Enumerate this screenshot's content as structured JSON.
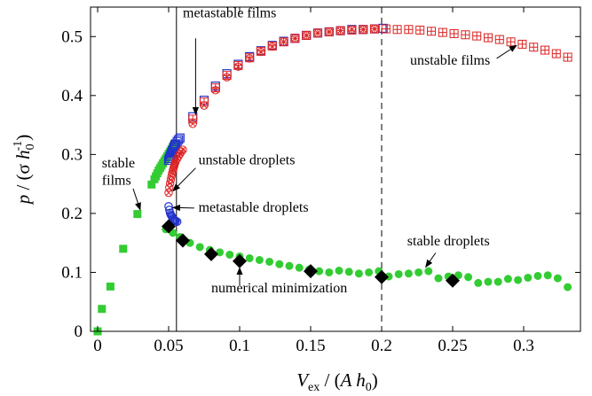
{
  "chart_data": {
    "type": "scatter",
    "title": "",
    "xlabel": {
      "main": "V",
      "sub": "ex",
      "rest_open": " / (",
      "italic": "A h",
      "sub2": "0",
      "rest_close": ")"
    },
    "ylabel": {
      "main": "p",
      "rest_open": " / (σ ",
      "italic": "h",
      "sub": "0",
      "sup": "-1",
      "rest_close": ")"
    },
    "xlim": [
      -0.005,
      0.34
    ],
    "ylim": [
      0,
      0.55
    ],
    "x_ticks": [
      0,
      0.05,
      0.1,
      0.15,
      0.2,
      0.25,
      0.3
    ],
    "x_tick_labels": [
      "0",
      "0.05",
      "0.1",
      "0.15",
      "0.2",
      "0.25",
      "0.3"
    ],
    "y_ticks": [
      0,
      0.1,
      0.2,
      0.3,
      0.4,
      0.5
    ],
    "y_tick_labels": [
      "0",
      "0.1",
      "0.2",
      "0.3",
      "0.4",
      "0.5"
    ],
    "grid": false,
    "vlines": [
      {
        "x": 0.0555,
        "style": "solid"
      },
      {
        "x": 0.2,
        "style": "dashed"
      }
    ],
    "series": [
      {
        "marker": "square-filled",
        "color": "#33cc33",
        "x": [
          0,
          0.003,
          0.009,
          0.018,
          0.028,
          0.038,
          0.04,
          0.041,
          0.042,
          0.043,
          0.044,
          0.045,
          0.046,
          0.047,
          0.048,
          0.049,
          0.05,
          0.051,
          0.052,
          0.053,
          0.054
        ],
        "y": [
          0,
          0.038,
          0.076,
          0.14,
          0.199,
          0.249,
          0.258,
          0.263,
          0.268,
          0.273,
          0.277,
          0.281,
          0.285,
          0.289,
          0.293,
          0.297,
          0.301,
          0.305,
          0.309,
          0.313,
          0.318
        ]
      },
      {
        "marker": "circle-filled",
        "color": "#33cc33",
        "x": [
          0.048,
          0.053,
          0.058,
          0.065,
          0.072,
          0.079,
          0.086,
          0.093,
          0.1,
          0.107,
          0.114,
          0.121,
          0.128,
          0.135,
          0.142,
          0.149,
          0.156,
          0.163,
          0.17,
          0.177,
          0.184,
          0.191,
          0.198,
          0.205,
          0.212,
          0.219,
          0.226,
          0.233,
          0.24,
          0.247,
          0.254,
          0.261,
          0.268,
          0.275,
          0.282,
          0.289,
          0.296,
          0.303,
          0.31,
          0.317,
          0.324,
          0.331
        ],
        "y": [
          0.173,
          0.167,
          0.16,
          0.15,
          0.143,
          0.138,
          0.134,
          0.13,
          0.127,
          0.124,
          0.121,
          0.118,
          0.114,
          0.111,
          0.108,
          0.105,
          0.102,
          0.1,
          0.103,
          0.101,
          0.098,
          0.1,
          0.102,
          0.093,
          0.097,
          0.098,
          0.1,
          0.102,
          0.09,
          0.093,
          0.095,
          0.092,
          0.082,
          0.084,
          0.084,
          0.089,
          0.087,
          0.091,
          0.094,
          0.095,
          0.09,
          0.075
        ]
      },
      {
        "marker": "square-open",
        "color": "#2233cc",
        "x": [
          0.05,
          0.0505,
          0.051,
          0.0515,
          0.052,
          0.0525,
          0.053,
          0.0535,
          0.054,
          0.0545,
          0.055,
          0.056,
          0.057,
          0.058,
          0.067,
          0.075,
          0.083,
          0.091,
          0.099,
          0.107,
          0.115,
          0.123,
          0.131,
          0.139,
          0.147,
          0.155,
          0.163,
          0.171,
          0.179,
          0.187,
          0.195,
          0.201
        ],
        "y": [
          0.29,
          0.293,
          0.296,
          0.299,
          0.302,
          0.305,
          0.308,
          0.311,
          0.314,
          0.316,
          0.318,
          0.322,
          0.325,
          0.328,
          0.364,
          0.392,
          0.416,
          0.437,
          0.453,
          0.466,
          0.476,
          0.485,
          0.492,
          0.497,
          0.502,
          0.506,
          0.508,
          0.51,
          0.512,
          0.512,
          0.513,
          0.514
        ]
      },
      {
        "marker": "circle-open",
        "color": "#2233cc",
        "x": [
          0.05,
          0.0505,
          0.051,
          0.0515,
          0.052,
          0.0525,
          0.053,
          0.0535,
          0.054,
          0.0545,
          0.055,
          0.056
        ],
        "y": [
          0.212,
          0.206,
          0.201,
          0.198,
          0.196,
          0.194,
          0.192,
          0.19,
          0.189,
          0.188,
          0.187,
          0.186
        ]
      },
      {
        "marker": "circle-x",
        "color": "#dd2222",
        "x": [
          0.05,
          0.0505,
          0.051,
          0.0515,
          0.052,
          0.0525,
          0.053,
          0.0535,
          0.054,
          0.0545,
          0.055,
          0.056,
          0.057,
          0.058,
          0.059,
          0.06,
          0.067,
          0.075,
          0.083,
          0.091,
          0.099,
          0.107,
          0.115,
          0.123,
          0.131,
          0.139,
          0.147,
          0.155,
          0.163,
          0.171,
          0.179,
          0.187,
          0.195
        ],
        "y": [
          0.235,
          0.244,
          0.251,
          0.257,
          0.263,
          0.268,
          0.273,
          0.277,
          0.281,
          0.285,
          0.289,
          0.293,
          0.297,
          0.301,
          0.305,
          0.308,
          0.352,
          0.383,
          0.409,
          0.431,
          0.449,
          0.463,
          0.474,
          0.483,
          0.491,
          0.497,
          0.502,
          0.506,
          0.508,
          0.51,
          0.512,
          0.512,
          0.513
        ]
      },
      {
        "marker": "square-plus",
        "color": "#dd2222",
        "x": [
          0.067,
          0.075,
          0.083,
          0.091,
          0.099,
          0.107,
          0.115,
          0.123,
          0.131,
          0.139,
          0.147,
          0.155,
          0.163,
          0.171,
          0.179,
          0.187,
          0.195,
          0.203,
          0.211,
          0.219,
          0.227,
          0.235,
          0.243,
          0.251,
          0.259,
          0.267,
          0.275,
          0.283,
          0.291,
          0.299,
          0.307,
          0.315,
          0.323,
          0.331
        ],
        "y": [
          0.36,
          0.389,
          0.413,
          0.434,
          0.451,
          0.464,
          0.475,
          0.484,
          0.491,
          0.497,
          0.502,
          0.506,
          0.508,
          0.51,
          0.511,
          0.512,
          0.513,
          0.513,
          0.512,
          0.512,
          0.511,
          0.509,
          0.507,
          0.505,
          0.503,
          0.501,
          0.498,
          0.495,
          0.491,
          0.487,
          0.482,
          0.477,
          0.471,
          0.465
        ]
      },
      {
        "marker": "diamond-filled",
        "color": "#000000",
        "x": [
          0.05,
          0.06,
          0.08,
          0.1,
          0.15,
          0.2,
          0.25
        ],
        "y": [
          0.178,
          0.154,
          0.131,
          0.119,
          0.102,
          0.092,
          0.086
        ]
      }
    ],
    "annotations": [
      {
        "text": "metastable films",
        "x": 0.06,
        "y": 0.533,
        "anchor": "start",
        "arrow_to": [
          0.069,
          0.368
        ],
        "arrow_from": [
          0.069,
          0.497
        ]
      },
      {
        "text": "unstable films",
        "x": 0.22,
        "y": 0.452,
        "anchor": "start",
        "arrow_to": [
          0.295,
          0.485
        ],
        "arrow_from": [
          0.281,
          0.463
        ]
      },
      {
        "text": "stable",
        "x": 0.003,
        "y": 0.278,
        "anchor": "start"
      },
      {
        "text": "films",
        "x": 0.003,
        "y": 0.249,
        "anchor": "start",
        "arrow_to": [
          0.03,
          0.206
        ],
        "arrow_from": [
          0.025,
          0.242
        ]
      },
      {
        "text": "unstable droplets",
        "x": 0.071,
        "y": 0.283,
        "anchor": "start",
        "arrow_to": [
          0.053,
          0.238
        ],
        "arrow_from": [
          0.069,
          0.277
        ]
      },
      {
        "text": "metastable droplets",
        "x": 0.071,
        "y": 0.203,
        "anchor": "start",
        "arrow_to": [
          0.053,
          0.21
        ],
        "arrow_from": [
          0.068,
          0.209
        ]
      },
      {
        "text": "stable droplets",
        "x": 0.218,
        "y": 0.146,
        "anchor": "start",
        "arrow_to": [
          0.231,
          0.109
        ],
        "arrow_from": [
          0.238,
          0.133
        ]
      },
      {
        "text": "numerical minimization",
        "x": 0.08,
        "y": 0.066,
        "anchor": "start",
        "arrow_to": [
          0.1,
          0.108
        ],
        "arrow_from": [
          0.1,
          0.078
        ]
      }
    ]
  }
}
